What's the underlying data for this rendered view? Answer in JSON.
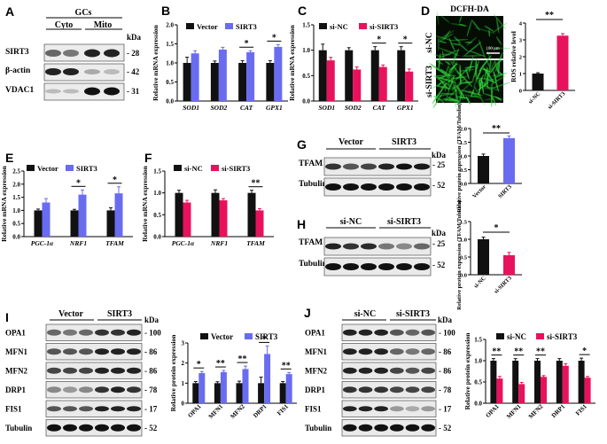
{
  "colors": {
    "black": "#111111",
    "blue": "#6a6cf0",
    "red": "#e8125c",
    "green": "#2fd23a"
  },
  "panels": {
    "A": {
      "letter": "A",
      "group": "GCs",
      "cols": [
        "Cyto",
        "Mito"
      ],
      "rows": [
        "SIRT3",
        "β-actin",
        "VDAC1"
      ],
      "kda": "kDa",
      "mw": [
        "28",
        "42",
        "31"
      ]
    },
    "D": {
      "letter": "D",
      "stain": "DCFH-DA",
      "rows": [
        "si-NC",
        "si-SIRT3"
      ],
      "scalebar": "100 μm",
      "ylabel": "ROS relative level",
      "cats": [
        "si-NC",
        "si-SIRT3"
      ],
      "sig": "**"
    },
    "G": {
      "letter": "G",
      "groups": [
        "Vector",
        "SIRT3"
      ],
      "rows": [
        "TFAM",
        "Tubulin"
      ],
      "kda": "kDa",
      "mw": [
        "25",
        "52"
      ],
      "ylabel": "Relative protein expression (TFAM/Tubulin)",
      "cats": [
        "Vector",
        "SIRT3"
      ],
      "sig": "**"
    },
    "H": {
      "letter": "H",
      "groups": [
        "si-NC",
        "si-SIRT3"
      ],
      "rows": [
        "TFAM",
        "Tubulin"
      ],
      "kda": "kDa",
      "mw": [
        "25",
        "52"
      ],
      "ylabel": "Relative protein expression (TFAM/Tubulin)",
      "cats": [
        "si-NC",
        "si-SIRT3"
      ],
      "sig": "*"
    },
    "I": {
      "letter": "I",
      "groups": [
        "Vector",
        "SIRT3"
      ],
      "rows": [
        "OPA1",
        "MFN1",
        "MFN2",
        "DRP1",
        "FIS1",
        "Tubulin"
      ],
      "kda": "kDa",
      "mw": [
        "100",
        "86",
        "86",
        "78",
        "17",
        "52"
      ]
    },
    "J": {
      "letter": "J",
      "groups": [
        "si-NC",
        "si-SIRT3"
      ],
      "rows": [
        "OPA1",
        "MFN1",
        "MFN2",
        "DRP1",
        "FIS1",
        "Tubulin"
      ],
      "kda": "kDa",
      "mw": [
        "100",
        "86",
        "86",
        "78",
        "17",
        "52"
      ]
    }
  },
  "chart_data": [
    {
      "id": "B",
      "letter": "B",
      "type": "bar",
      "categories": [
        "SOD1",
        "SOD2",
        "CAT",
        "GPX1"
      ],
      "ylabel": "Relative mRNA expression",
      "ylim": [
        0,
        2.0
      ],
      "yticks": [
        0,
        0.5,
        1.0,
        1.5,
        2.0
      ],
      "ticklabels": [
        "0.0",
        "0.5",
        "1.0",
        "1.5",
        "2.0"
      ],
      "series": [
        {
          "name": "Vector",
          "color": "#111111",
          "values": [
            1.0,
            1.0,
            1.0,
            1.0
          ],
          "errors": [
            0.15,
            0.05,
            0.06,
            0.06
          ]
        },
        {
          "name": "SIRT3",
          "color": "#6a6cf0",
          "values": [
            1.25,
            1.35,
            1.28,
            1.42
          ],
          "errors": [
            0.07,
            0.06,
            0.04,
            0.06
          ]
        }
      ],
      "sig": [
        {
          "cat": 2,
          "text": "*"
        },
        {
          "cat": 3,
          "text": "*"
        }
      ]
    },
    {
      "id": "C",
      "letter": "C",
      "type": "bar",
      "categories": [
        "SOD1",
        "SOD2",
        "CAT",
        "GPX1"
      ],
      "ylabel": "Relative mRNA expression",
      "ylim": [
        0,
        1.5
      ],
      "yticks": [
        0,
        0.5,
        1.0,
        1.5
      ],
      "ticklabels": [
        "0.0",
        "0.5",
        "1.0",
        "1.5"
      ],
      "series": [
        {
          "name": "si-NC",
          "color": "#111111",
          "values": [
            1.0,
            1.0,
            1.0,
            1.0
          ],
          "errors": [
            0.12,
            0.05,
            0.07,
            0.07
          ]
        },
        {
          "name": "si-SIRT3",
          "color": "#e8125c",
          "values": [
            0.8,
            0.62,
            0.67,
            0.58
          ],
          "errors": [
            0.06,
            0.05,
            0.04,
            0.05
          ]
        }
      ],
      "sig": [
        {
          "cat": 2,
          "text": "*"
        },
        {
          "cat": 3,
          "text": "*"
        }
      ]
    },
    {
      "id": "Dbar",
      "type": "bar",
      "categories": [
        "si-NC",
        "si-SIRT3"
      ],
      "ylim": [
        0,
        4
      ],
      "yticks": [
        0,
        1,
        2,
        3,
        4
      ],
      "ticklabels": [
        "0",
        "1",
        "2",
        "3",
        "4"
      ],
      "series": [
        {
          "colors": [
            "#111111",
            "#e8125c"
          ],
          "values": [
            1.0,
            3.25
          ],
          "errors": [
            0.05,
            0.12
          ]
        }
      ]
    },
    {
      "id": "E",
      "letter": "E",
      "type": "bar",
      "categories": [
        "PGC-1α",
        "NRF1",
        "TFAM"
      ],
      "ylabel": "Relative mRNA expression",
      "ylim": [
        0,
        2.5
      ],
      "yticks": [
        0,
        0.5,
        1.0,
        1.5,
        2.0,
        2.5
      ],
      "ticklabels": [
        "0.0",
        "0.5",
        "1.0",
        "1.5",
        "2.0",
        "2.5"
      ],
      "series": [
        {
          "name": "Vector",
          "color": "#111111",
          "values": [
            1.0,
            1.0,
            1.0
          ],
          "errors": [
            0.05,
            0.04,
            0.1
          ]
        },
        {
          "name": "SIRT3",
          "color": "#6a6cf0",
          "values": [
            1.3,
            1.6,
            1.65
          ],
          "errors": [
            0.15,
            0.18,
            0.25
          ]
        }
      ],
      "sig": [
        {
          "cat": 1,
          "text": "*"
        },
        {
          "cat": 2,
          "text": "*"
        }
      ]
    },
    {
      "id": "F",
      "letter": "F",
      "type": "bar",
      "categories": [
        "PGC-1α",
        "NRF1",
        "TFAM"
      ],
      "ylabel": "Relative mRNA expression",
      "ylim": [
        0,
        1.5
      ],
      "yticks": [
        0,
        0.5,
        1.0,
        1.5
      ],
      "ticklabels": [
        "0.0",
        "0.5",
        "1.0",
        "1.5"
      ],
      "series": [
        {
          "name": "si-NC",
          "color": "#111111",
          "values": [
            1.0,
            1.0,
            1.0
          ],
          "errors": [
            0.06,
            0.07,
            0.06
          ]
        },
        {
          "name": "si-SIRT3",
          "color": "#e8125c",
          "values": [
            0.78,
            0.83,
            0.6
          ],
          "errors": [
            0.05,
            0.04,
            0.04
          ]
        }
      ],
      "sig": [
        {
          "cat": 2,
          "text": "**"
        }
      ]
    },
    {
      "id": "Gbar",
      "type": "bar",
      "categories": [
        "Vector",
        "SIRT3"
      ],
      "ylim": [
        0,
        2.0
      ],
      "yticks": [
        0,
        0.5,
        1.0,
        1.5,
        2.0
      ],
      "ticklabels": [
        "0.0",
        "0.5",
        "1.0",
        "1.5",
        "2.0"
      ],
      "series": [
        {
          "colors": [
            "#111111",
            "#6a6cf0"
          ],
          "values": [
            1.0,
            1.65
          ],
          "errors": [
            0.07,
            0.08
          ]
        }
      ]
    },
    {
      "id": "Hbar",
      "type": "bar",
      "categories": [
        "si-NC",
        "si-SIRT3"
      ],
      "ylim": [
        0,
        1.5
      ],
      "yticks": [
        0,
        0.5,
        1.0,
        1.5
      ],
      "ticklabels": [
        "0.0",
        "0.5",
        "1.0",
        "1.5"
      ],
      "series": [
        {
          "colors": [
            "#111111",
            "#e8125c"
          ],
          "values": [
            1.0,
            0.55
          ],
          "errors": [
            0.06,
            0.08
          ]
        }
      ]
    },
    {
      "id": "Ibar",
      "type": "bar",
      "categories": [
        "OPA1",
        "MFN1",
        "MFN2",
        "DRP1",
        "FIS1"
      ],
      "ylabel": "Relative protein expression",
      "ylim": [
        0,
        3
      ],
      "yticks": [
        0,
        1,
        2,
        3
      ],
      "ticklabels": [
        "0",
        "1",
        "2",
        "3"
      ],
      "series": [
        {
          "name": "Vector",
          "color": "#111111",
          "values": [
            1.0,
            1.0,
            1.0,
            1.0,
            1.0
          ],
          "errors": [
            0.08,
            0.07,
            0.1,
            0.3,
            0.08
          ]
        },
        {
          "name": "SIRT3",
          "color": "#6a6cf0",
          "values": [
            1.5,
            1.55,
            1.7,
            2.45,
            1.45
          ],
          "errors": [
            0.08,
            0.08,
            0.15,
            0.4,
            0.08
          ]
        }
      ],
      "sig": [
        {
          "cat": 0,
          "text": "*"
        },
        {
          "cat": 1,
          "text": "**"
        },
        {
          "cat": 2,
          "text": "**"
        },
        {
          "cat": 3,
          "text": "*"
        },
        {
          "cat": 4,
          "text": "**"
        }
      ]
    },
    {
      "id": "Jbar",
      "type": "bar",
      "categories": [
        "OPA1",
        "MFN1",
        "MFN2",
        "DRP1",
        "FIS1"
      ],
      "ylabel": "Relative protein expression",
      "ylim": [
        0,
        1.5
      ],
      "yticks": [
        0,
        0.5,
        1.0,
        1.5
      ],
      "ticklabels": [
        "0.0",
        "0.5",
        "1.0",
        "1.5"
      ],
      "series": [
        {
          "name": "si-NC",
          "color": "#111111",
          "values": [
            1.0,
            1.0,
            1.0,
            1.0,
            1.0
          ],
          "errors": [
            0.05,
            0.05,
            0.05,
            0.05,
            0.06
          ]
        },
        {
          "name": "si-SIRT3",
          "color": "#e8125c",
          "values": [
            0.58,
            0.45,
            0.62,
            0.88,
            0.6
          ],
          "errors": [
            0.05,
            0.04,
            0.03,
            0.05,
            0.03
          ]
        }
      ],
      "sig": [
        {
          "cat": 0,
          "text": "**"
        },
        {
          "cat": 1,
          "text": "**"
        },
        {
          "cat": 2,
          "text": "**"
        },
        {
          "cat": 4,
          "text": "*"
        }
      ]
    }
  ]
}
